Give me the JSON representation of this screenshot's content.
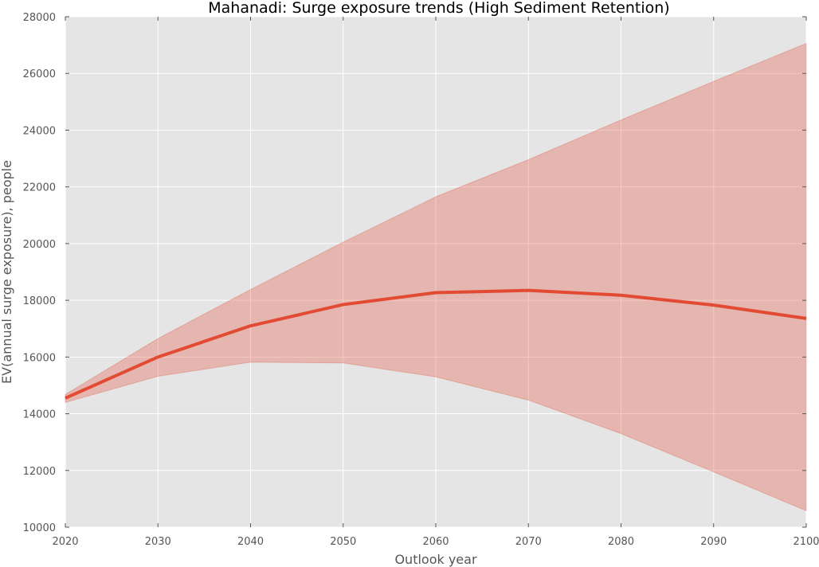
{
  "chart_data": {
    "type": "area",
    "title": "Mahanadi: Surge exposure trends (High Sediment Retention)",
    "xlabel": "Outlook year",
    "ylabel": "EV(annual surge exposure), people",
    "xlim": [
      2020,
      2100
    ],
    "ylim": [
      10000,
      28000
    ],
    "xticks": [
      2020,
      2030,
      2040,
      2050,
      2060,
      2070,
      2080,
      2090,
      2100
    ],
    "yticks": [
      10000,
      12000,
      14000,
      16000,
      18000,
      20000,
      22000,
      24000,
      26000,
      28000
    ],
    "grid": true,
    "x": [
      2020,
      2030,
      2040,
      2050,
      2060,
      2070,
      2080,
      2090,
      2100
    ],
    "series": [
      {
        "role": "mean",
        "values": [
          14550,
          16000,
          17100,
          17850,
          18270,
          18350,
          18180,
          17830,
          17360
        ]
      },
      {
        "role": "band",
        "lower": [
          14400,
          15320,
          15820,
          15790,
          15300,
          14480,
          13300,
          11950,
          10580
        ],
        "upper": [
          14680,
          16650,
          18380,
          20050,
          21650,
          22960,
          24360,
          25720,
          27060
        ]
      }
    ],
    "colors": {
      "line": "#E24A33",
      "band": "#E24A33",
      "plot_background": "#E5E5E5",
      "grid": "#FFFFFF",
      "text": "#555555"
    }
  }
}
